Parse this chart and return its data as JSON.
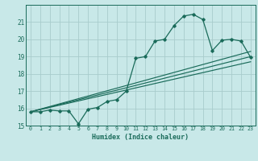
{
  "title": "",
  "xlabel": "Humidex (Indice chaleur)",
  "bg_color": "#c8e8e8",
  "grid_color": "#a8cccc",
  "line_color": "#1a6b5a",
  "xlim": [
    -0.5,
    23.5
  ],
  "ylim": [
    15,
    22
  ],
  "xticks": [
    0,
    1,
    2,
    3,
    4,
    5,
    6,
    7,
    8,
    9,
    10,
    11,
    12,
    13,
    14,
    15,
    16,
    17,
    18,
    19,
    20,
    21,
    22,
    23
  ],
  "yticks": [
    15,
    16,
    17,
    18,
    19,
    20,
    21
  ],
  "main_x": [
    0,
    1,
    2,
    3,
    4,
    5,
    6,
    7,
    8,
    9,
    10,
    11,
    12,
    13,
    14,
    15,
    16,
    17,
    18,
    19,
    20,
    21,
    22,
    23
  ],
  "main_y": [
    15.8,
    15.8,
    15.9,
    15.85,
    15.85,
    15.1,
    15.95,
    16.05,
    16.4,
    16.5,
    17.0,
    18.9,
    19.0,
    19.9,
    20.0,
    20.8,
    21.35,
    21.45,
    21.15,
    19.35,
    19.95,
    20.0,
    19.9,
    18.95
  ],
  "ref_lines": [
    {
      "x": [
        0,
        23
      ],
      "y": [
        15.8,
        18.7
      ]
    },
    {
      "x": [
        0,
        23
      ],
      "y": [
        15.8,
        19.0
      ]
    },
    {
      "x": [
        0,
        23
      ],
      "y": [
        15.8,
        19.3
      ]
    }
  ]
}
